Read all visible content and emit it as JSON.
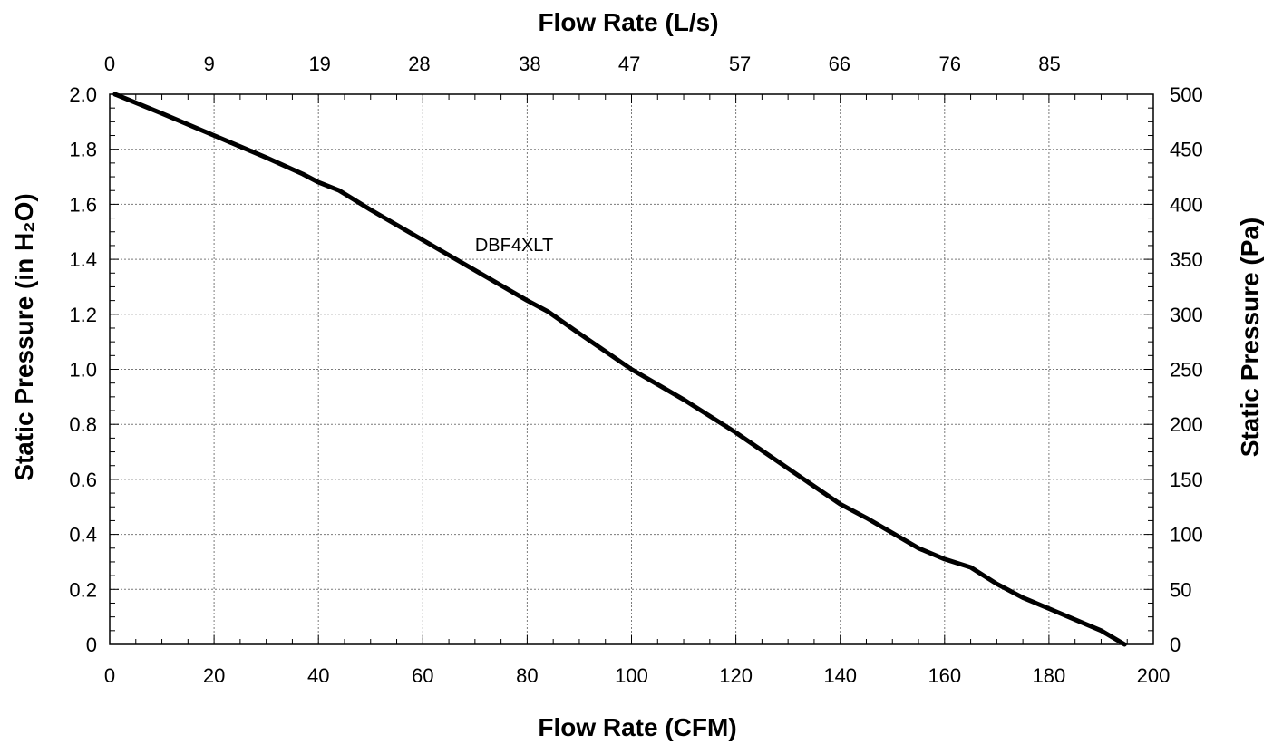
{
  "chart_data": {
    "type": "line",
    "title": "",
    "xlabel": "Flow Rate (CFM)",
    "x2label": "Flow Rate (L/s)",
    "ylabel": "Static Pressure (in H₂O)",
    "y2label": "Static Pressure (Pa)",
    "xlim": [
      0,
      200
    ],
    "ylim": [
      0,
      2.0
    ],
    "grid": true,
    "x_ticks": [
      "0",
      "20",
      "40",
      "60",
      "80",
      "100",
      "120",
      "140",
      "160",
      "180",
      "200"
    ],
    "x2_ticks": [
      "0",
      "9",
      "19",
      "28",
      "38",
      "47",
      "57",
      "66",
      "76",
      "85"
    ],
    "y_ticks": [
      "0",
      "0.2",
      "0.4",
      "0.6",
      "0.8",
      "1.0",
      "1.2",
      "1.4",
      "1.6",
      "1.8",
      "2.0"
    ],
    "y2_ticks": [
      "0",
      "50",
      "100",
      "150",
      "200",
      "250",
      "300",
      "350",
      "400",
      "450",
      "500"
    ],
    "series": [
      {
        "name": "DBF4XLT",
        "x": [
          1,
          10,
          20,
          25,
          30,
          37,
          40,
          44,
          50,
          60,
          70,
          80,
          84,
          90,
          100,
          110,
          120,
          130,
          140,
          145,
          155,
          160,
          165,
          170,
          175,
          180,
          185,
          190,
          194.5
        ],
        "y": [
          2.0,
          1.93,
          1.85,
          1.81,
          1.77,
          1.71,
          1.68,
          1.65,
          1.58,
          1.47,
          1.36,
          1.25,
          1.21,
          1.13,
          1.0,
          0.89,
          0.77,
          0.64,
          0.51,
          0.46,
          0.35,
          0.31,
          0.28,
          0.22,
          0.17,
          0.13,
          0.09,
          0.05,
          0.0
        ]
      }
    ]
  }
}
